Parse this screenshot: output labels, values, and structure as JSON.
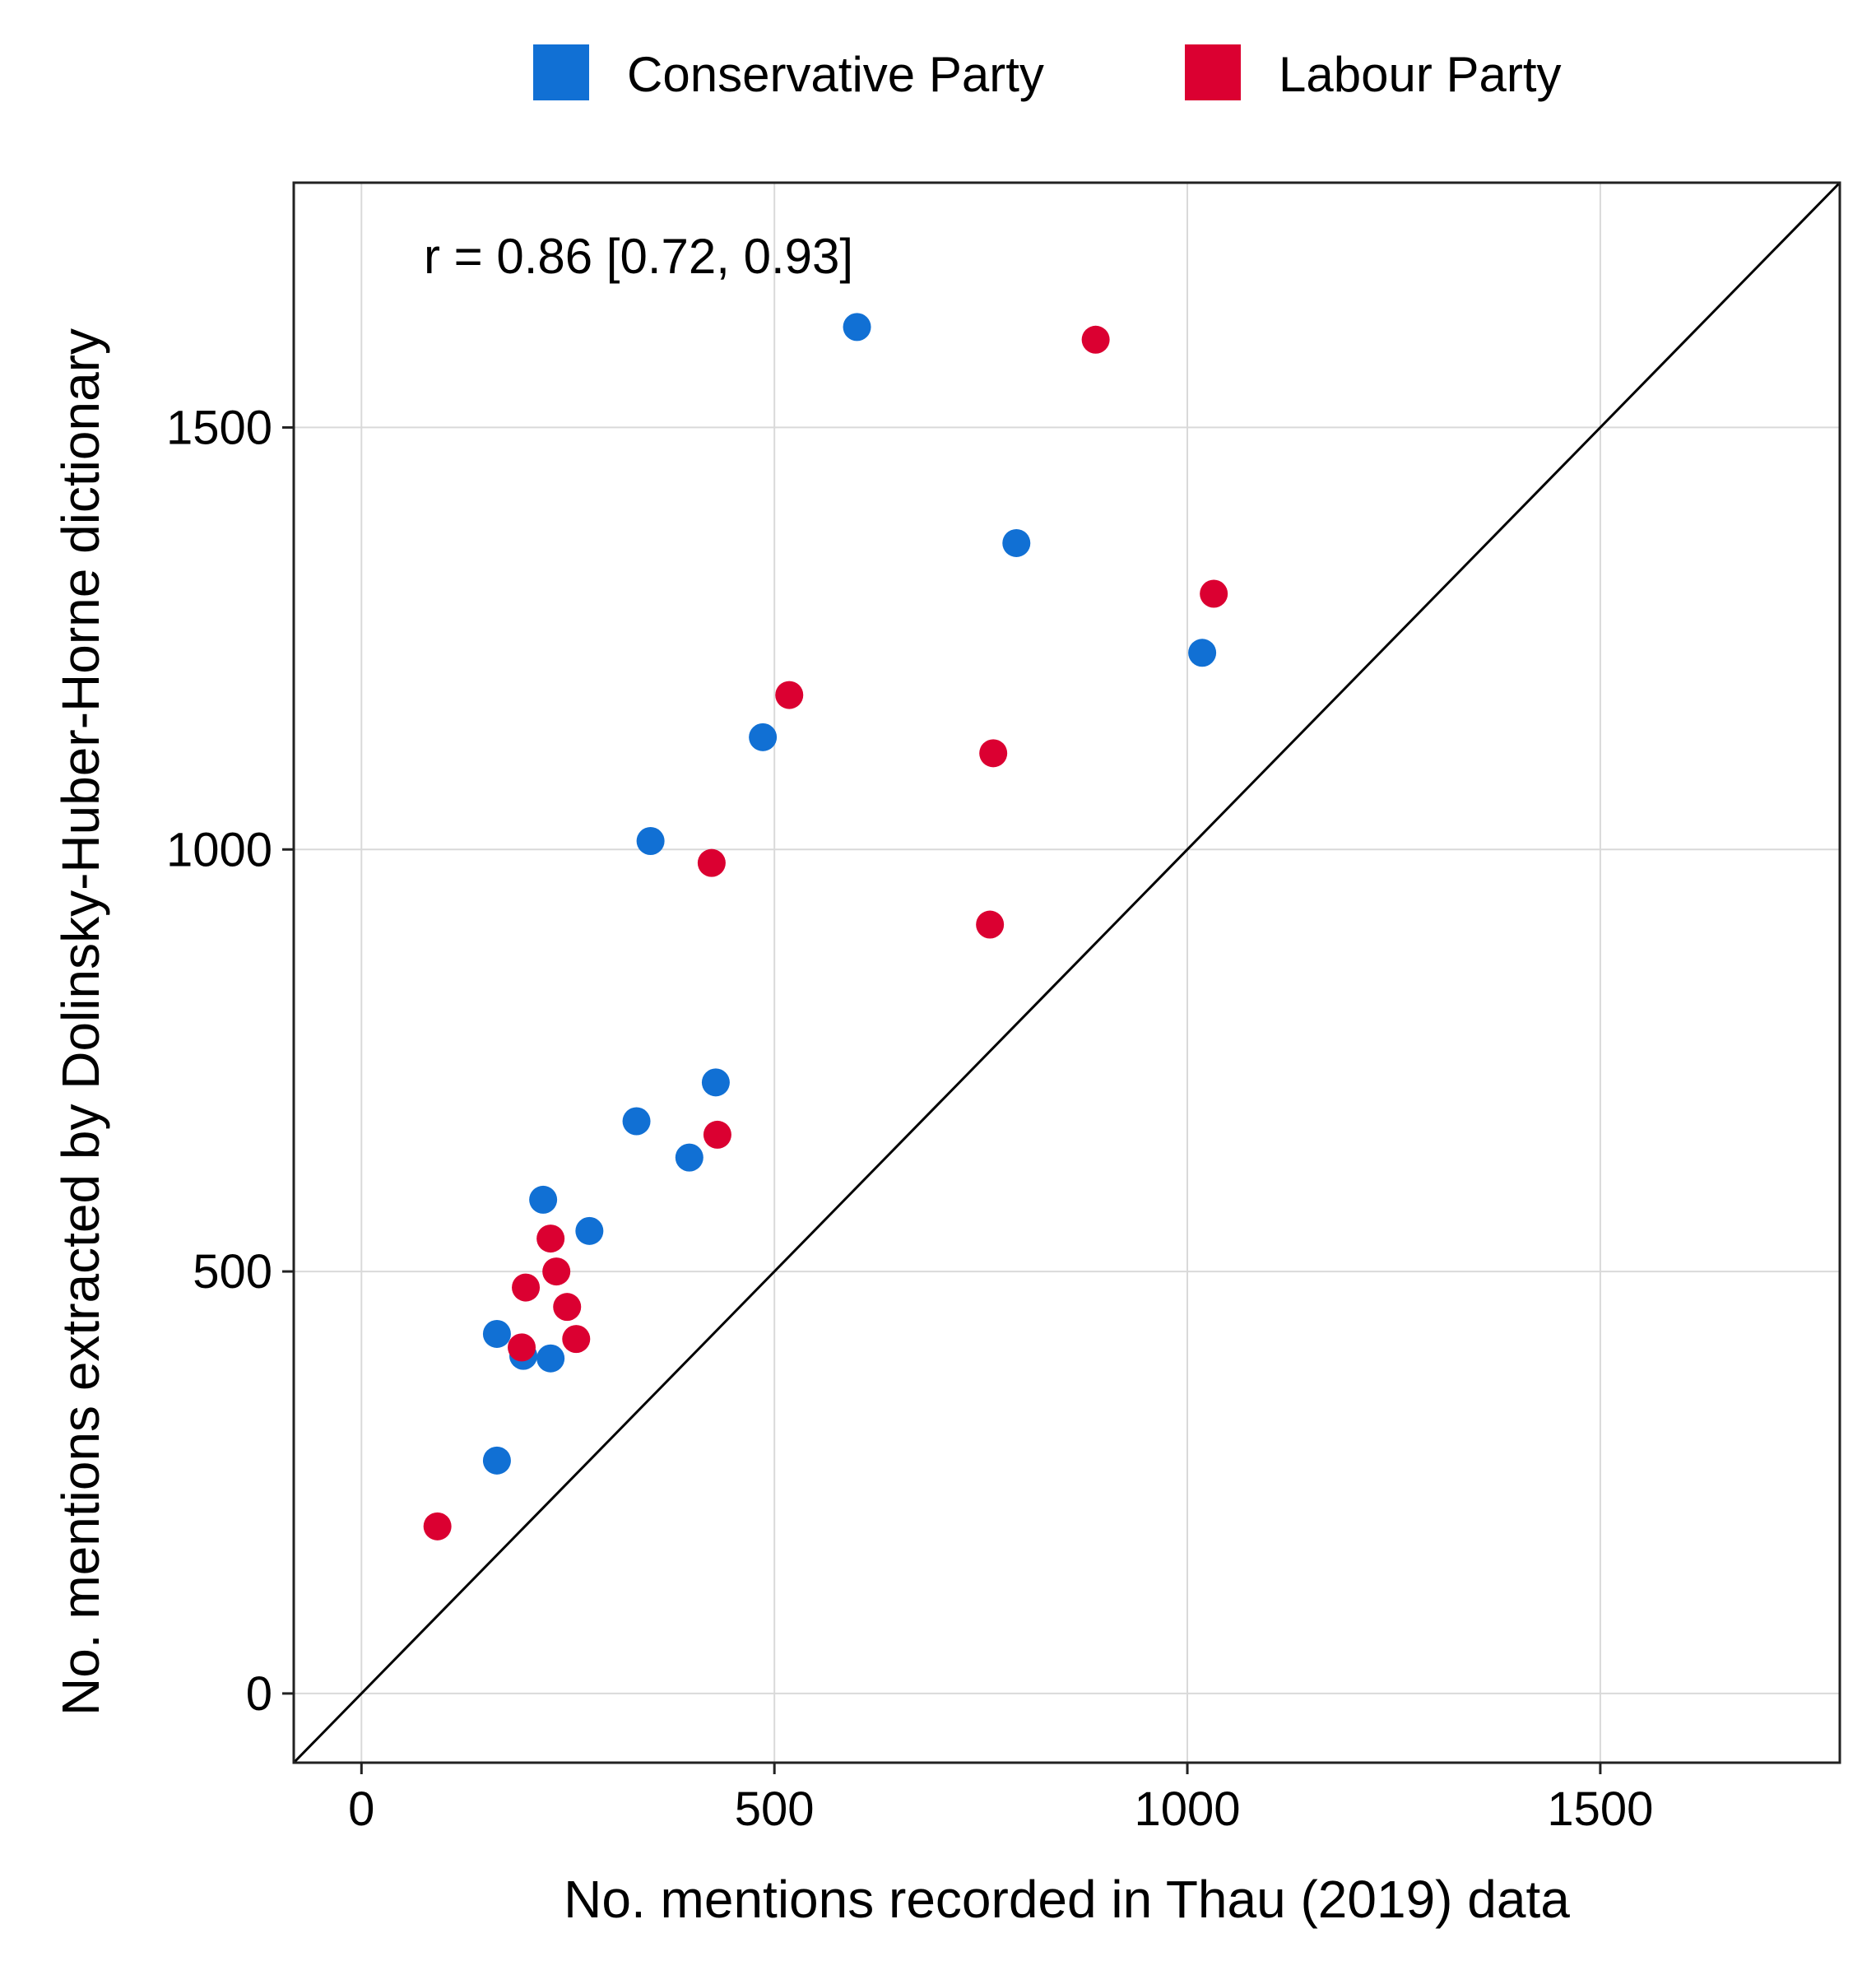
{
  "chart_data": {
    "type": "scatter",
    "xlabel": "No. mentions recorded in Thau (2019) data",
    "ylabel": "No. mentions extracted by Dolinsky-Huber-Horne dictionary",
    "xlim": [
      -82,
      1790
    ],
    "ylim": [
      -82,
      1790
    ],
    "xticks": [
      0,
      500,
      1000,
      1500
    ],
    "yticks": [
      0,
      500,
      1000,
      1500
    ],
    "grid": true,
    "legend_position": "top",
    "reference_line": "y = x",
    "annotation": "r = 0.86 [0.72, 0.93]",
    "series": [
      {
        "name": "Conservative Party",
        "color": "#1170d4",
        "points": [
          [
            600,
            1619
          ],
          [
            793,
            1363
          ],
          [
            1018,
            1233
          ],
          [
            486,
            1133
          ],
          [
            350,
            1010
          ],
          [
            429,
            724
          ],
          [
            333,
            678
          ],
          [
            397,
            635
          ],
          [
            220,
            585
          ],
          [
            276,
            548
          ],
          [
            164,
            426
          ],
          [
            196,
            400
          ],
          [
            229,
            397
          ],
          [
            164,
            276
          ]
        ]
      },
      {
        "name": "Labour Party",
        "color": "#db0031",
        "points": [
          [
            889,
            1604
          ],
          [
            1032,
            1303
          ],
          [
            518,
            1183
          ],
          [
            765,
            1114
          ],
          [
            424,
            984
          ],
          [
            761,
            911
          ],
          [
            431,
            662
          ],
          [
            229,
            539
          ],
          [
            236,
            500
          ],
          [
            199,
            481
          ],
          [
            249,
            458
          ],
          [
            260,
            420
          ],
          [
            194,
            410
          ],
          [
            92,
            198
          ]
        ]
      }
    ]
  }
}
